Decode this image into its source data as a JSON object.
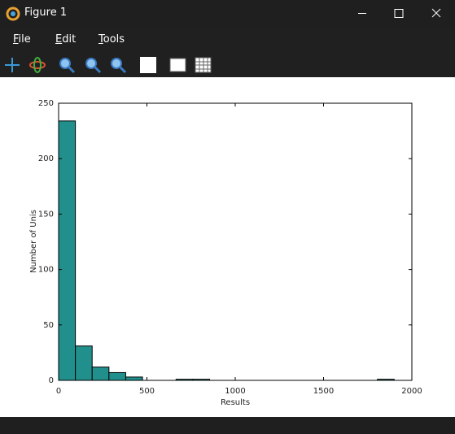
{
  "window": {
    "title": "Figure 1"
  },
  "menu": [
    "File",
    "Edit",
    "Tools"
  ],
  "chart_data": {
    "type": "histogram",
    "bins": [
      0,
      95,
      190,
      285,
      380,
      475,
      570,
      665,
      760,
      855,
      950,
      1045,
      1140,
      1235,
      1330,
      1425,
      1520,
      1615,
      1710,
      1805,
      1900
    ],
    "values": [
      234,
      31,
      12,
      7,
      3,
      0,
      0,
      1,
      1,
      0,
      0,
      0,
      0,
      0,
      0,
      0,
      0,
      0,
      0,
      1
    ],
    "color": "#21908d",
    "xlabel": "Results",
    "ylabel": "Number of Unis",
    "xlim": [
      0,
      2000
    ],
    "xticks": [
      0,
      500,
      1000,
      1500,
      2000
    ],
    "ylim": [
      0,
      250
    ],
    "yticks": [
      0,
      50,
      100,
      150,
      200,
      250
    ]
  }
}
